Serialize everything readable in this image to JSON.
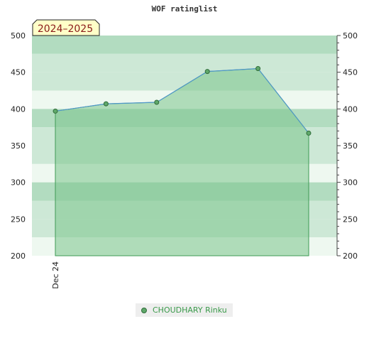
{
  "chart_data": {
    "type": "area",
    "title": "WOF ratinglist",
    "badge": "2024–2025",
    "xlabel": "",
    "ylabel": "",
    "ylim": [
      200,
      500
    ],
    "yticks": [
      200,
      250,
      300,
      350,
      400,
      450,
      500
    ],
    "x_tick_labels": [
      "Dec 24"
    ],
    "grid": true,
    "legend_position": "bottom-center",
    "colors": {
      "fill": "#7cc48d",
      "line": "#4f97c9",
      "marker_fill": "#5fa86a",
      "marker_stroke": "#2f6b39",
      "band_dark": "#b2dcc0",
      "band_mid": "#cde8d6",
      "band_light": "#eef8f0"
    },
    "series": [
      {
        "name": "CHOUDHARY Rinku",
        "values": [
          397,
          407,
          409,
          451,
          455,
          367
        ]
      }
    ]
  }
}
